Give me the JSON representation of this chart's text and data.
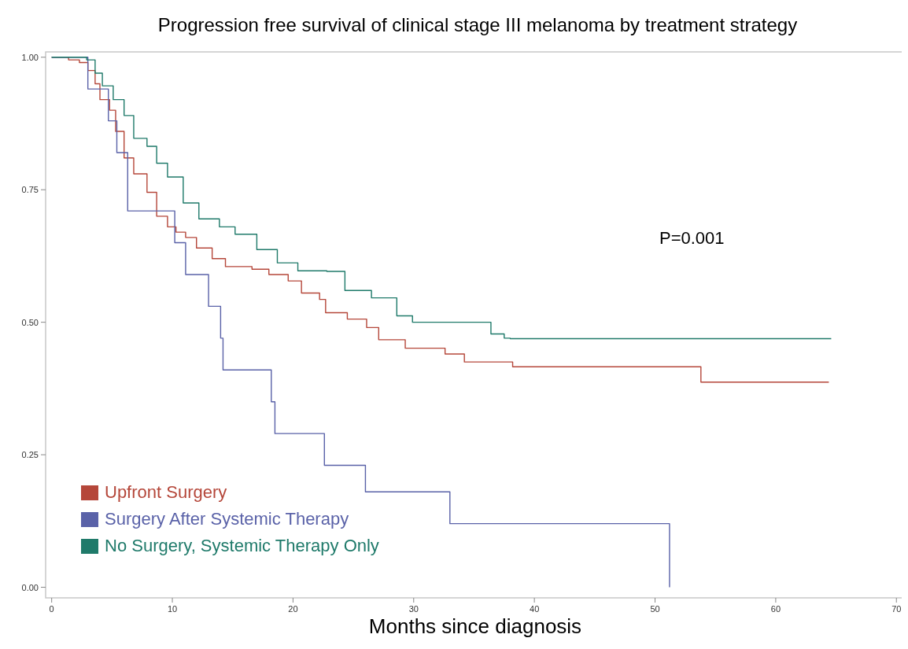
{
  "chart_data": {
    "type": "step",
    "title": "Progression free survival of clinical stage III melanoma by treatment strategy",
    "xlabel": "Months since diagnosis",
    "xlim": [
      -0.5,
      70.7
    ],
    "ylim": [
      -0.02,
      1.01
    ],
    "xticks": [
      0,
      10,
      20,
      30,
      40,
      50,
      60,
      70
    ],
    "yticks": [
      {
        "value": 0,
        "label": "0.00"
      },
      {
        "value": 0.25,
        "label": "0.25"
      },
      {
        "value": 0.5,
        "label": "0.50"
      },
      {
        "value": 0.75,
        "label": "0.75"
      },
      {
        "value": 1,
        "label": "1.00"
      }
    ],
    "grid": false,
    "legend": "bottom left",
    "marker": "none",
    "line_style": "solid",
    "annotations": [
      "P=0.001"
    ],
    "series": [
      {
        "name": "Upfront Surgery",
        "color": "#b5473a",
        "x": [
          0,
          1.4,
          2.3,
          3.0,
          3.6,
          4.0,
          4.8,
          5.3,
          6.0,
          6.8,
          7.9,
          8.7,
          9.6,
          10.3,
          11.1,
          12.0,
          13.3,
          14.4,
          16.6,
          18.0,
          19.6,
          20.7,
          22.2,
          22.7,
          24.5,
          26.1,
          27.1,
          29.3,
          32.6,
          34.2,
          38.2,
          53.8,
          64.4
        ],
        "values": [
          1,
          0.995,
          0.99,
          0.975,
          0.95,
          0.92,
          0.9,
          0.86,
          0.81,
          0.78,
          0.745,
          0.7,
          0.68,
          0.67,
          0.66,
          0.64,
          0.62,
          0.605,
          0.6,
          0.59,
          0.578,
          0.555,
          0.543,
          0.518,
          0.506,
          0.49,
          0.467,
          0.451,
          0.44,
          0.425,
          0.416,
          0.387,
          0.387
        ]
      },
      {
        "name": "Surgery After Systemic Therapy",
        "color": "#5a62a8",
        "x": [
          0,
          3.0,
          4.7,
          5.4,
          6.3,
          10.2,
          11.1,
          13.0,
          14.0,
          14.2,
          18.2,
          18.5,
          22.6,
          26.0,
          33.0,
          51.2
        ],
        "values": [
          1,
          0.94,
          0.88,
          0.82,
          0.71,
          0.65,
          0.59,
          0.53,
          0.47,
          0.41,
          0.35,
          0.29,
          0.23,
          0.18,
          0.12,
          0
        ]
      },
      {
        "name": "No Surgery, Systemic Therapy Only",
        "color": "#1f7a6a",
        "x": [
          0,
          2.9,
          3.6,
          4.2,
          5.1,
          6.0,
          6.8,
          7.9,
          8.7,
          9.6,
          10.9,
          12.2,
          13.9,
          15.2,
          17.0,
          18.7,
          20.4,
          22.8,
          24.3,
          26.5,
          28.6,
          29.9,
          34.5,
          36.4,
          37.5,
          38.0,
          64.6
        ],
        "values": [
          1,
          0.995,
          0.97,
          0.946,
          0.92,
          0.89,
          0.847,
          0.832,
          0.8,
          0.774,
          0.725,
          0.695,
          0.68,
          0.666,
          0.637,
          0.612,
          0.597,
          0.596,
          0.56,
          0.546,
          0.512,
          0.5,
          0.5,
          0.478,
          0.47,
          0.469,
          0.469
        ]
      }
    ]
  }
}
